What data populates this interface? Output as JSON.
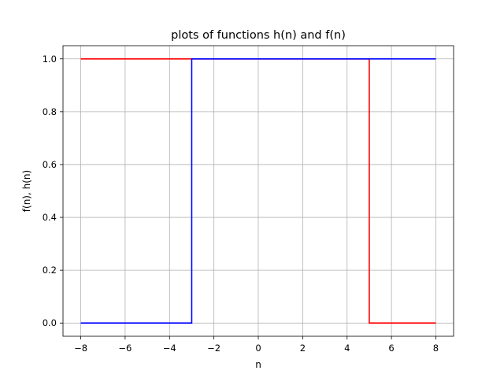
{
  "chart_data": {
    "type": "line",
    "title": "plots of functions h(n) and f(n)",
    "xlabel": "n",
    "ylabel": "f(n), h(n)",
    "xlim": [
      -8.8,
      8.8
    ],
    "ylim": [
      -0.05,
      1.05
    ],
    "xticks": [
      -8,
      -6,
      -4,
      -2,
      0,
      2,
      4,
      6,
      8
    ],
    "xtick_labels": [
      "−8",
      "−6",
      "−4",
      "−2",
      "0",
      "2",
      "4",
      "6",
      "8"
    ],
    "yticks": [
      0.0,
      0.2,
      0.4,
      0.6,
      0.8,
      1.0
    ],
    "ytick_labels": [
      "0.0",
      "0.2",
      "0.4",
      "0.6",
      "0.8",
      "1.0"
    ],
    "grid": true,
    "series": [
      {
        "color": "#ff0000",
        "x": [
          -8,
          5,
          5,
          8
        ],
        "y": [
          1,
          1,
          0,
          0
        ]
      },
      {
        "color": "#0000ff",
        "x": [
          -8,
          -3,
          -3,
          8
        ],
        "y": [
          0,
          0,
          1,
          1
        ]
      }
    ]
  }
}
